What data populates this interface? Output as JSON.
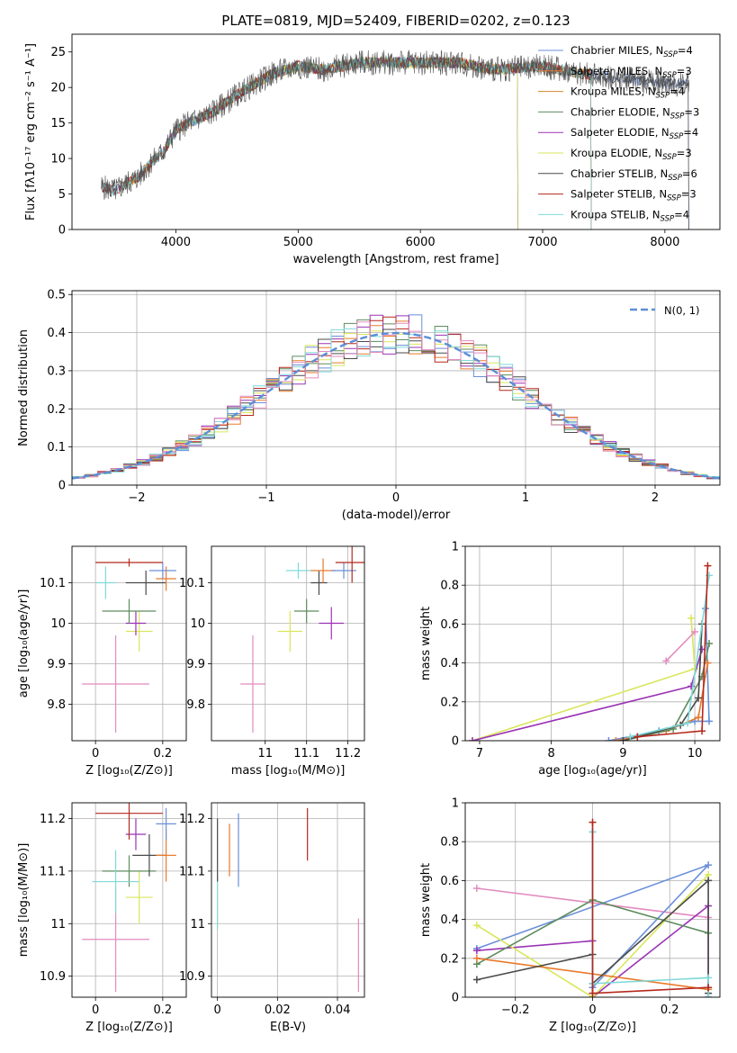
{
  "title": "PLATE=0819, MJD=52409, FIBERID=0202, z=0.123",
  "chart_data": [
    {
      "id": "spectrum",
      "type": "line",
      "title": "PLATE=0819, MJD=52409, FIBERID=0202, z=0.123",
      "xlabel": "wavelength [Angstrom, rest frame]",
      "ylabel": "Flux [fλ10⁻¹⁷ erg cm⁻² s⁻¹ A⁻¹]",
      "xlim": [
        3150,
        8450
      ],
      "ylim": [
        0,
        27.5
      ],
      "xticks": [
        4000,
        5000,
        6000,
        7000,
        8000
      ],
      "yticks": [
        0,
        5,
        10,
        15,
        20,
        25
      ],
      "grid": false,
      "legend_position": "top-right",
      "data_color": "#555555",
      "continuum": {
        "x": [
          3390,
          3500,
          3700,
          3800,
          3900,
          4000,
          4100,
          4300,
          4500,
          4700,
          4800,
          5000,
          5200,
          5500,
          5800,
          6000,
          6300,
          6600,
          7000,
          7300,
          7500,
          7800,
          8100,
          8200
        ],
        "y": [
          6,
          5.5,
          7.5,
          9.5,
          11,
          14,
          15,
          16.5,
          19,
          21,
          22,
          23,
          22.5,
          23.5,
          23.5,
          23.5,
          23.5,
          22.5,
          23,
          22,
          21.5,
          21,
          20.5,
          20.5
        ]
      },
      "series": [
        {
          "name": "Chabrier MILES, N<sub>SSP</sub>=4",
          "color": "#6a8fd8",
          "start": 3390,
          "end": 8200
        },
        {
          "name": "Salpeter MILES, N<sub>SSP</sub>=3",
          "color": "#e87a2c",
          "start": 3570,
          "end": 7400
        },
        {
          "name": "Kroupa MILES, N<sub>SSP</sub>=4",
          "color": "#d18a2a",
          "start": 3570,
          "end": 7400
        },
        {
          "name": "Chabrier ELODIE, N<sub>SSP</sub>=3",
          "color": "#5e8c5e",
          "start": 3900,
          "end": 6800
        },
        {
          "name": "Salpeter ELODIE, N<sub>SSP</sub>=4",
          "color": "#9b33b5",
          "start": 3900,
          "end": 6800
        },
        {
          "name": "Kroupa ELODIE, N<sub>SSP</sub>=3",
          "color": "#d9e65c",
          "start": 3900,
          "end": 6800
        },
        {
          "name": "Chabrier STELIB, N<sub>SSP</sub>=6",
          "color": "#4a4a4a",
          "start": 3390,
          "end": 8200
        },
        {
          "name": "Salpeter STELIB, N<sub>SSP</sub>=3",
          "color": "#b5281c",
          "start": 3390,
          "end": 7400
        },
        {
          "name": "Kroupa STELIB, N<sub>SSP</sub>=4",
          "color": "#7fd9d9",
          "start": 3390,
          "end": 7400
        }
      ]
    },
    {
      "id": "residuals",
      "type": "step-histogram",
      "xlabel": "(data-model)/error",
      "ylabel": "Normed distribution",
      "xlim": [
        -2.5,
        2.5
      ],
      "ylim": [
        0,
        0.51
      ],
      "xticks": [
        -2,
        -1,
        0,
        1,
        2
      ],
      "yticks": [
        0.0,
        0.1,
        0.2,
        0.3,
        0.4,
        0.5
      ],
      "grid": true,
      "legend_position": "top-right",
      "bin_width": 0.1,
      "reference": {
        "name": "N(0, 1)",
        "color": "#5b8fd6",
        "style": "dashed"
      },
      "series_colors": [
        "#6a8fd8",
        "#e87a2c",
        "#5e8c5e",
        "#9b33b5",
        "#d9e65c",
        "#4a4a4a",
        "#b5281c",
        "#7fd9d9",
        "#e38bbf"
      ]
    },
    {
      "id": "age-vs-Z",
      "type": "errorbar",
      "xlabel": "Z [log₁₀(Z/Z⊙)]",
      "ylabel": "age  [log₁₀(age/yr)]",
      "xlim": [
        -0.07,
        0.27
      ],
      "ylim": [
        9.71,
        10.19
      ],
      "xticks": [
        0.0,
        0.2
      ],
      "yticks": [
        9.8,
        9.9,
        10.0,
        10.1
      ],
      "grid": true,
      "points": [
        {
          "x": 0.06,
          "y": 9.85,
          "xerr": 0.1,
          "yerr": 0.12,
          "color": "#e38bbf"
        },
        {
          "x": 0.13,
          "y": 9.98,
          "xerr": 0.04,
          "yerr": 0.05,
          "color": "#d9e65c"
        },
        {
          "x": 0.12,
          "y": 10.0,
          "xerr": 0.03,
          "yerr": 0.03,
          "color": "#9b33b5"
        },
        {
          "x": 0.1,
          "y": 10.03,
          "xerr": 0.08,
          "yerr": 0.03,
          "color": "#5e8c5e"
        },
        {
          "x": 0.03,
          "y": 10.1,
          "xerr": 0.03,
          "yerr": 0.04,
          "color": "#7fd9d9"
        },
        {
          "x": 0.15,
          "y": 10.1,
          "xerr": 0.06,
          "yerr": 0.03,
          "color": "#4a4a4a"
        },
        {
          "x": 0.21,
          "y": 10.11,
          "xerr": 0.03,
          "yerr": 0.03,
          "color": "#e87a2c"
        },
        {
          "x": 0.2,
          "y": 10.13,
          "xerr": 0.04,
          "yerr": 0.02,
          "color": "#6a8fd8"
        },
        {
          "x": 0.1,
          "y": 10.15,
          "xerr": 0.1,
          "yerr": 0.01,
          "color": "#b5281c"
        }
      ]
    },
    {
      "id": "age-vs-mass",
      "type": "errorbar",
      "xlabel": "mass [log₁₀(M/M⊙)]",
      "ylabel": "",
      "xlim": [
        10.87,
        11.24
      ],
      "ylim": [
        9.71,
        10.19
      ],
      "xticks": [
        11.0,
        11.1,
        11.2
      ],
      "yticks": [
        9.8,
        9.9,
        10.0,
        10.1
      ],
      "grid": true,
      "points": [
        {
          "x": 10.97,
          "y": 9.85,
          "xerr": 0.03,
          "yerr": 0.12,
          "color": "#e38bbf"
        },
        {
          "x": 11.06,
          "y": 9.98,
          "xerr": 0.03,
          "yerr": 0.05,
          "color": "#d9e65c"
        },
        {
          "x": 11.16,
          "y": 10.0,
          "xerr": 0.03,
          "yerr": 0.04,
          "color": "#9b33b5"
        },
        {
          "x": 11.1,
          "y": 10.03,
          "xerr": 0.03,
          "yerr": 0.03,
          "color": "#5e8c5e"
        },
        {
          "x": 11.08,
          "y": 10.13,
          "xerr": 0.03,
          "yerr": 0.02,
          "color": "#7fd9d9"
        },
        {
          "x": 11.13,
          "y": 10.1,
          "xerr": 0.02,
          "yerr": 0.03,
          "color": "#4a4a4a"
        },
        {
          "x": 11.14,
          "y": 10.13,
          "xerr": 0.03,
          "yerr": 0.03,
          "color": "#e87a2c"
        },
        {
          "x": 11.19,
          "y": 10.13,
          "xerr": 0.03,
          "yerr": 0.02,
          "color": "#6a8fd8"
        },
        {
          "x": 11.21,
          "y": 10.15,
          "xerr": 0.04,
          "yerr": 0.05,
          "color": "#b5281c"
        }
      ]
    },
    {
      "id": "weight-vs-age",
      "type": "line",
      "xlabel": "age  [log₁₀(age/yr)]",
      "ylabel": "mass weight",
      "xlim": [
        6.8,
        10.35
      ],
      "ylim": [
        0,
        1.0
      ],
      "xticks": [
        7,
        8,
        9,
        10
      ],
      "yticks": [
        0.0,
        0.2,
        0.4,
        0.6,
        0.8,
        1.0
      ],
      "grid": true,
      "series": [
        {
          "color": "#d9e65c",
          "x": [
            6.9,
            10.0,
            9.95
          ],
          "y": [
            0.0,
            0.37,
            0.63
          ]
        },
        {
          "color": "#9b33b5",
          "x": [
            6.9,
            9.95,
            10.1
          ],
          "y": [
            0.0,
            0.28,
            0.47
          ]
        },
        {
          "color": "#e38bbf",
          "x": [
            9.6,
            10.0
          ],
          "y": [
            0.41,
            0.56
          ]
        },
        {
          "color": "#6a8fd8",
          "x": [
            8.8,
            9.5,
            10.0,
            10.2,
            10.15
          ],
          "y": [
            0.0,
            0.05,
            0.1,
            0.1,
            0.68
          ]
        },
        {
          "color": "#e87a2c",
          "x": [
            8.9,
            9.6,
            10.05,
            10.18
          ],
          "y": [
            0.0,
            0.05,
            0.12,
            0.4
          ]
        },
        {
          "color": "#5e8c5e",
          "x": [
            9.0,
            9.7,
            10.1,
            10.2
          ],
          "y": [
            0.0,
            0.06,
            0.33,
            0.5
          ]
        },
        {
          "color": "#4a4a4a",
          "x": [
            9.0,
            9.8,
            10.05,
            10.1
          ],
          "y": [
            0.0,
            0.08,
            0.22,
            0.6
          ]
        },
        {
          "color": "#7fd9d9",
          "x": [
            9.1,
            9.9,
            10.2
          ],
          "y": [
            0.02,
            0.09,
            0.85
          ]
        },
        {
          "color": "#b5281c",
          "x": [
            9.2,
            10.1,
            10.18
          ],
          "y": [
            0.02,
            0.05,
            0.9
          ]
        }
      ]
    },
    {
      "id": "mass-vs-Z",
      "type": "errorbar",
      "xlabel": "Z [log₁₀(Z/Z⊙)]",
      "ylabel": "mass [log₁₀(M/M⊙)]",
      "xlim": [
        -0.07,
        0.27
      ],
      "ylim": [
        10.86,
        11.23
      ],
      "xticks": [
        0.0,
        0.2
      ],
      "yticks": [
        10.9,
        11.0,
        11.1,
        11.2
      ],
      "grid": true,
      "points": [
        {
          "x": 0.06,
          "y": 10.97,
          "xerr": 0.1,
          "yerr": 0.1,
          "color": "#e38bbf"
        },
        {
          "x": 0.13,
          "y": 11.05,
          "xerr": 0.04,
          "yerr": 0.05,
          "color": "#d9e65c"
        },
        {
          "x": 0.12,
          "y": 11.17,
          "xerr": 0.03,
          "yerr": 0.03,
          "color": "#9b33b5"
        },
        {
          "x": 0.1,
          "y": 11.1,
          "xerr": 0.08,
          "yerr": 0.03,
          "color": "#5e8c5e"
        },
        {
          "x": 0.06,
          "y": 11.08,
          "xerr": 0.07,
          "yerr": 0.06,
          "color": "#7fd9d9"
        },
        {
          "x": 0.16,
          "y": 11.13,
          "xerr": 0.05,
          "yerr": 0.04,
          "color": "#4a4a4a"
        },
        {
          "x": 0.21,
          "y": 11.13,
          "xerr": 0.03,
          "yerr": 0.05,
          "color": "#e87a2c"
        },
        {
          "x": 0.21,
          "y": 11.19,
          "xerr": 0.03,
          "yerr": 0.03,
          "color": "#6a8fd8"
        },
        {
          "x": 0.1,
          "y": 11.21,
          "xerr": 0.1,
          "yerr": 0.05,
          "color": "#b5281c"
        }
      ]
    },
    {
      "id": "mass-vs-EBV",
      "type": "errorbar",
      "xlabel": "E(B-V)",
      "ylabel": "",
      "xlim": [
        -0.002,
        0.049
      ],
      "ylim": [
        10.86,
        11.23
      ],
      "xticks": [
        0.0,
        0.02,
        0.04
      ],
      "yticks": [
        10.9,
        11.0,
        11.1,
        11.2
      ],
      "grid": true,
      "points": [
        {
          "x": 0.0,
          "y": 11.04,
          "xerr": 0,
          "yerr": 0.05,
          "color": "#7fd9d9"
        },
        {
          "x": 0.0,
          "y": 11.14,
          "xerr": 0,
          "yerr": 0.06,
          "color": "#4a4a4a"
        },
        {
          "x": 0.004,
          "y": 11.14,
          "xerr": 0,
          "yerr": 0.05,
          "color": "#e87a2c"
        },
        {
          "x": 0.007,
          "y": 11.14,
          "xerr": 0,
          "yerr": 0.07,
          "color": "#6a8fd8"
        },
        {
          "x": 0.03,
          "y": 11.17,
          "xerr": 0,
          "yerr": 0.05,
          "color": "#b5281c"
        },
        {
          "x": 0.047,
          "y": 10.94,
          "xerr": 0,
          "yerr": 0.07,
          "color": "#e38bbf"
        }
      ]
    },
    {
      "id": "weight-vs-Z",
      "type": "line",
      "xlabel": "Z [log₁₀(Z/Z⊙)]",
      "ylabel": "mass weight",
      "xlim": [
        -0.33,
        0.33
      ],
      "ylim": [
        0,
        1.0
      ],
      "xticks": [
        -0.2,
        0.0,
        0.2
      ],
      "yticks": [
        0.0,
        0.2,
        0.4,
        0.6,
        0.8,
        1.0
      ],
      "grid": true,
      "series": [
        {
          "color": "#e38bbf",
          "x": [
            -0.3,
            0.3
          ],
          "y": [
            0.56,
            0.41
          ]
        },
        {
          "color": "#6a8fd8",
          "x": [
            -0.3,
            0.3,
            0.0,
            0.0
          ],
          "y": [
            0.25,
            0.68,
            0.05,
            0.85
          ]
        },
        {
          "color": "#9b33b5",
          "x": [
            -0.3,
            0.0,
            0.0,
            0.3,
            0.3
          ],
          "y": [
            0.24,
            0.29,
            0.0,
            0.47,
            0.0
          ]
        },
        {
          "color": "#d9e65c",
          "x": [
            -0.3,
            0.0,
            0.3
          ],
          "y": [
            0.37,
            0.0,
            0.63
          ]
        },
        {
          "color": "#5e8c5e",
          "x": [
            -0.3,
            0.0,
            0.3
          ],
          "y": [
            0.17,
            0.5,
            0.33
          ]
        },
        {
          "color": "#e87a2c",
          "x": [
            -0.3,
            0.3
          ],
          "y": [
            0.2,
            0.04
          ]
        },
        {
          "color": "#4a4a4a",
          "x": [
            -0.3,
            0.0,
            0.0,
            0.3,
            0.3
          ],
          "y": [
            0.09,
            0.22,
            0.07,
            0.6,
            0.02
          ]
        },
        {
          "color": "#7fd9d9",
          "x": [
            0.0,
            0.0,
            0.3,
            0.3
          ],
          "y": [
            0.85,
            0.07,
            0.1,
            0.0
          ]
        },
        {
          "color": "#b5281c",
          "x": [
            0.0,
            0.0,
            0.3
          ],
          "y": [
            0.9,
            0.02,
            0.05
          ]
        }
      ]
    }
  ]
}
